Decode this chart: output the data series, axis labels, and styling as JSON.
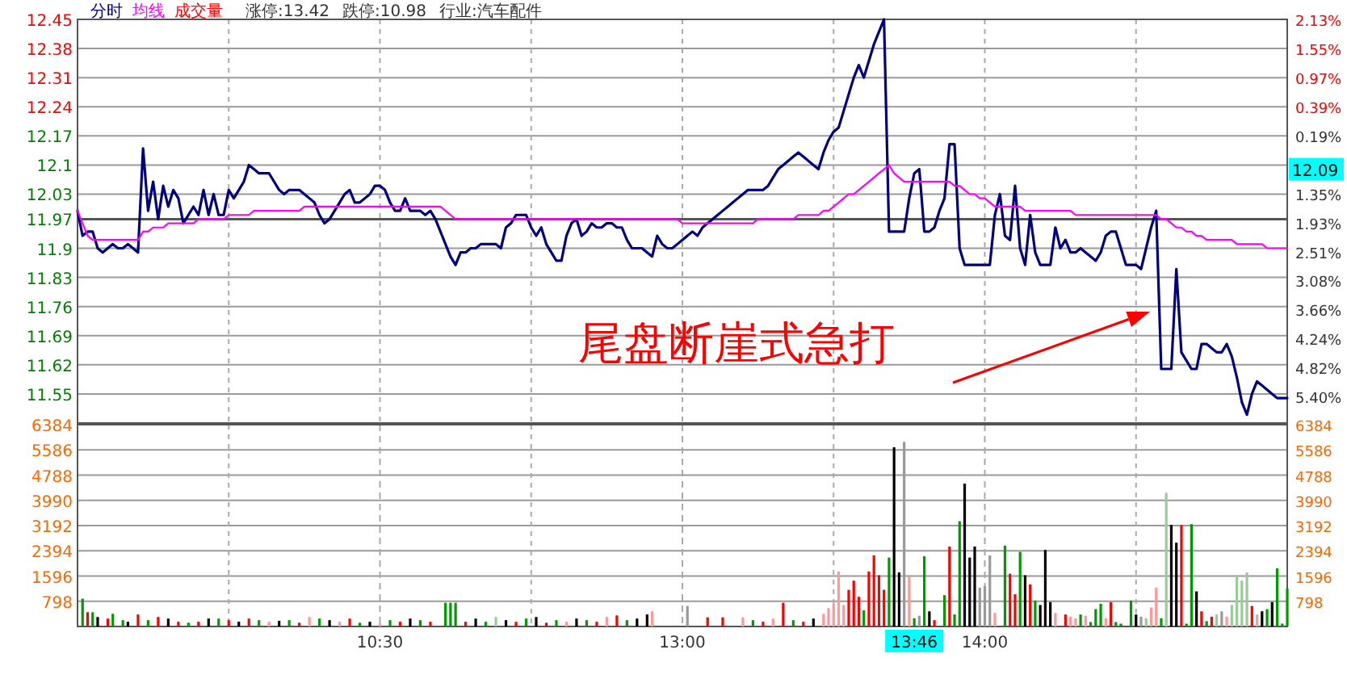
{
  "chart_data": [
    {
      "type": "line",
      "ylim": [
        11.48,
        12.45
      ],
      "y2lim": [
        -5.93,
        2.13
      ],
      "grid": true,
      "legend": "top left",
      "tick_labels": "y",
      "categories": [
        null,
        null,
        null,
        null,
        null,
        null,
        null,
        null,
        null,
        null,
        null,
        null,
        null,
        null,
        null,
        null,
        null,
        null,
        null,
        null,
        null,
        null,
        null,
        null,
        null,
        null,
        null,
        null,
        null,
        null,
        null,
        null,
        null,
        null,
        null,
        null,
        null,
        null,
        null,
        null,
        null,
        null,
        null,
        null,
        null,
        null,
        null,
        null,
        null,
        null,
        null,
        null,
        null,
        null,
        null,
        null,
        null,
        null,
        null,
        null,
        null,
        null,
        null,
        null,
        null,
        null,
        null,
        null,
        null,
        null,
        null,
        null,
        null,
        null,
        null,
        null,
        null,
        null,
        null,
        null,
        null,
        null,
        null,
        null,
        null,
        null,
        null,
        null,
        null,
        null,
        null,
        null,
        null,
        null,
        null,
        null,
        null,
        null,
        null,
        null,
        null,
        null,
        null,
        null,
        null,
        null,
        null,
        null,
        null,
        null,
        null,
        null,
        null,
        null,
        null,
        null,
        null,
        null,
        null,
        null,
        null,
        null,
        null,
        null,
        null,
        null,
        null,
        null,
        null,
        null,
        null,
        null,
        null,
        null,
        null,
        null,
        null,
        null,
        null,
        null,
        null,
        null,
        null,
        null,
        null,
        null,
        null,
        null,
        null,
        null,
        null,
        null,
        null,
        null,
        null,
        null,
        null,
        null,
        null,
        null,
        null,
        null,
        null,
        null,
        null,
        null,
        null,
        null,
        null,
        null,
        null,
        null,
        null,
        null,
        null,
        null,
        null,
        null,
        null,
        null,
        null,
        null,
        null,
        null,
        null,
        null,
        null,
        null,
        null,
        null,
        null,
        null,
        null,
        null,
        null,
        null,
        null,
        null,
        null,
        null,
        null,
        null,
        null,
        null,
        null,
        null,
        null,
        null,
        null,
        null,
        null,
        null,
        null,
        null,
        null,
        null,
        null,
        null,
        null,
        null,
        null,
        null,
        null,
        null,
        null,
        null,
        null,
        null,
        null,
        null,
        null,
        null,
        null,
        null,
        null,
        null,
        null,
        null,
        null,
        null,
        null
      ],
      "yticks": [
        12.45,
        12.38,
        12.31,
        12.24,
        12.17,
        12.1,
        12.03,
        11.97,
        11.9,
        11.83,
        11.76,
        11.69,
        11.62,
        11.55
      ],
      "y2ticks": [
        {
          "value": 2.13,
          "label": "2.13%"
        },
        {
          "value": 1.55,
          "label": "1.55%"
        },
        {
          "value": 0.97,
          "label": "0.97%"
        },
        {
          "value": 0.39,
          "label": "0.39%"
        },
        {
          "value": -0.19,
          "label": "0.19%"
        },
        {
          "value": -1.35,
          "label": "1.35%"
        },
        {
          "value": -1.93,
          "label": "1.93%"
        },
        {
          "value": -2.51,
          "label": "2.51%"
        },
        {
          "value": -3.08,
          "label": "3.08%"
        },
        {
          "value": -3.66,
          "label": "3.66%"
        },
        {
          "value": -4.24,
          "label": "4.24%"
        },
        {
          "value": -4.82,
          "label": "4.82%"
        },
        {
          "value": -5.4,
          "label": "5.40%"
        }
      ],
      "ref_lines": [
        {
          "axis": "y",
          "value": 11.97,
          "color": "#555555"
        }
      ],
      "annotations": [
        "涨停:13.42",
        "跌停:10.98",
        "行业:汽车配件",
        "尾盘断崖式急打",
        "12.09"
      ],
      "series": [
        {
          "name": "分时",
          "type": "line",
          "color": "#000080",
          "values": [
            11.99,
            11.93,
            11.94,
            11.94,
            11.9,
            11.89,
            11.9,
            11.91,
            11.9,
            11.9,
            11.91,
            11.9,
            11.89,
            12.14,
            11.99,
            12.06,
            11.97,
            12.05,
            12.0,
            12.04,
            12.02,
            11.96,
            11.98,
            12.0,
            11.98,
            12.04,
            11.98,
            12.03,
            11.98,
            11.98,
            12.04,
            12.02,
            12.04,
            12.06,
            12.1,
            12.09,
            12.08,
            12.08,
            12.08,
            12.06,
            12.04,
            12.03,
            12.04,
            12.04,
            12.04,
            12.03,
            12.02,
            12.01,
            11.98,
            11.96,
            11.97,
            11.99,
            12.01,
            12.03,
            12.04,
            12.01,
            12.01,
            12.02,
            12.03,
            12.05,
            12.05,
            12.04,
            12.01,
            11.99,
            11.99,
            12.02,
            11.99,
            11.99,
            11.99,
            11.98,
            11.99,
            11.97,
            11.94,
            11.91,
            11.88,
            11.86,
            11.89,
            11.89,
            11.9,
            11.9,
            11.91,
            11.91,
            11.91,
            11.91,
            11.9,
            11.95,
            11.96,
            11.98,
            11.98,
            11.98,
            11.95,
            11.93,
            11.95,
            11.91,
            11.89,
            11.87,
            11.87,
            11.93,
            11.96,
            11.97,
            11.93,
            11.94,
            11.96,
            11.95,
            11.95,
            11.96,
            11.96,
            11.95,
            11.95,
            11.92,
            11.9,
            11.9,
            11.9,
            11.89,
            11.88,
            11.93,
            11.91,
            11.9,
            11.9,
            11.91,
            11.92,
            11.93,
            11.94,
            11.93,
            11.95,
            11.96,
            11.97,
            11.98,
            11.99,
            12.0,
            12.01,
            12.02,
            12.03,
            12.04,
            12.04,
            12.04,
            12.04,
            12.05,
            12.07,
            12.09,
            12.1,
            12.11,
            12.12,
            12.13,
            12.12,
            12.11,
            12.1,
            12.09,
            12.13,
            12.16,
            12.18,
            12.19,
            12.23,
            12.27,
            12.31,
            12.34,
            12.31,
            12.35,
            12.39,
            12.42,
            12.45,
            11.94,
            11.94,
            11.94,
            11.94,
            12.02,
            12.08,
            12.09,
            11.94,
            11.94,
            11.95,
            11.99,
            12.02,
            12.15,
            12.15,
            11.9,
            11.86,
            11.86,
            11.86,
            11.86,
            11.86,
            11.86,
            11.98,
            12.03,
            11.93,
            11.92,
            12.05,
            11.9,
            11.86,
            11.98,
            11.89,
            11.86,
            11.86,
            11.86,
            11.95,
            11.9,
            11.92,
            11.89,
            11.89,
            11.9,
            11.89,
            11.88,
            11.87,
            11.89,
            11.93,
            11.94,
            11.94,
            11.9,
            11.86,
            11.86,
            11.86,
            11.85,
            11.9,
            11.95,
            11.99,
            11.61,
            11.61,
            11.61,
            11.85,
            11.65,
            11.63,
            11.61,
            11.61,
            11.67,
            11.67,
            11.66,
            11.65,
            11.65,
            11.67,
            11.64,
            11.59,
            11.53,
            11.5,
            11.55,
            11.58,
            11.57,
            11.56,
            11.55,
            11.54,
            11.54,
            11.54
          ]
        },
        {
          "name": "均线",
          "type": "line",
          "color": "#ff00ff",
          "values": [
            11.99,
            11.96,
            11.93,
            11.92,
            11.92,
            11.92,
            11.92,
            11.92,
            11.92,
            11.92,
            11.92,
            11.92,
            11.92,
            11.94,
            11.94,
            11.95,
            11.95,
            11.95,
            11.96,
            11.96,
            11.96,
            11.96,
            11.96,
            11.96,
            11.97,
            11.97,
            11.97,
            11.97,
            11.97,
            11.97,
            11.98,
            11.98,
            11.98,
            11.98,
            11.98,
            11.99,
            11.99,
            11.99,
            11.99,
            11.99,
            11.99,
            11.99,
            11.99,
            11.99,
            11.99,
            12.0,
            12.0,
            12.0,
            12.0,
            12.0,
            12.0,
            12.0,
            12.0,
            12.0,
            12.0,
            12.0,
            12.0,
            12.0,
            12.0,
            12.0,
            12.0,
            12.0,
            12.0,
            12.0,
            12.0,
            12.0,
            12.0,
            12.0,
            12.0,
            12.0,
            12.0,
            12.0,
            12.0,
            11.99,
            11.98,
            11.97,
            11.97,
            11.97,
            11.97,
            11.97,
            11.97,
            11.97,
            11.97,
            11.97,
            11.97,
            11.97,
            11.97,
            11.97,
            11.97,
            11.97,
            11.97,
            11.97,
            11.97,
            11.97,
            11.97,
            11.97,
            11.97,
            11.97,
            11.97,
            11.97,
            11.97,
            11.97,
            11.97,
            11.97,
            11.97,
            11.97,
            11.97,
            11.97,
            11.97,
            11.97,
            11.97,
            11.97,
            11.97,
            11.97,
            11.97,
            11.97,
            11.97,
            11.97,
            11.97,
            11.97,
            11.96,
            11.96,
            11.96,
            11.96,
            11.96,
            11.96,
            11.96,
            11.96,
            11.96,
            11.96,
            11.96,
            11.96,
            11.96,
            11.96,
            11.96,
            11.97,
            11.97,
            11.97,
            11.97,
            11.97,
            11.97,
            11.97,
            11.97,
            11.98,
            11.98,
            11.98,
            11.98,
            11.98,
            11.99,
            11.99,
            12.0,
            12.01,
            12.02,
            12.03,
            12.03,
            12.04,
            12.05,
            12.06,
            12.07,
            12.08,
            12.09,
            12.1,
            12.08,
            12.07,
            12.06,
            12.06,
            12.06,
            12.06,
            12.06,
            12.06,
            12.06,
            12.06,
            12.06,
            12.06,
            12.05,
            12.05,
            12.04,
            12.03,
            12.03,
            12.02,
            12.02,
            12.01,
            12.0,
            12.0,
            12.0,
            12.0,
            12.0,
            12.0,
            11.99,
            11.99,
            11.99,
            11.99,
            11.99,
            11.99,
            11.99,
            11.99,
            11.99,
            11.99,
            11.98,
            11.98,
            11.98,
            11.98,
            11.98,
            11.98,
            11.98,
            11.98,
            11.98,
            11.98,
            11.98,
            11.98,
            11.98,
            11.98,
            11.98,
            11.98,
            11.98,
            11.97,
            11.97,
            11.96,
            11.95,
            11.95,
            11.94,
            11.94,
            11.93,
            11.93,
            11.92,
            11.92,
            11.92,
            11.92,
            11.92,
            11.92,
            11.91,
            11.91,
            11.91,
            11.91,
            11.91,
            11.91,
            11.9,
            11.9,
            11.9,
            11.9,
            11.9
          ]
        }
      ]
    },
    {
      "type": "bar",
      "ylim": [
        0,
        6384
      ],
      "y2lim": [
        0,
        6384
      ],
      "grid": true,
      "legend": "top left",
      "categories": [
        null,
        null,
        null,
        null,
        null,
        null,
        null,
        null,
        null,
        null,
        null,
        null,
        null,
        null,
        null,
        null,
        null,
        null,
        null,
        null,
        null,
        null,
        null,
        null,
        null,
        null,
        null,
        null,
        null,
        null,
        null,
        null,
        null,
        null,
        null,
        null,
        null,
        null,
        null,
        null,
        null,
        null,
        null,
        null,
        null,
        null,
        null,
        null,
        null,
        null,
        null,
        null,
        null,
        null,
        null,
        null,
        null,
        null,
        null,
        null,
        "10:30",
        null,
        null,
        null,
        null,
        null,
        null,
        null,
        null,
        null,
        null,
        null,
        null,
        null,
        null,
        null,
        null,
        null,
        null,
        null,
        null,
        null,
        null,
        null,
        null,
        null,
        null,
        null,
        null,
        null,
        null,
        null,
        null,
        null,
        null,
        null,
        null,
        null,
        null,
        null,
        null,
        null,
        null,
        null,
        null,
        null,
        null,
        null,
        null,
        null,
        null,
        null,
        null,
        null,
        null,
        null,
        null,
        null,
        null,
        null,
        "13:00",
        null,
        null,
        null,
        null,
        null,
        null,
        null,
        null,
        null,
        null,
        null,
        null,
        null,
        null,
        null,
        null,
        null,
        null,
        null,
        null,
        null,
        null,
        null,
        null,
        null,
        null,
        null,
        null,
        null,
        null,
        null,
        null,
        null,
        null,
        null,
        null,
        null,
        null,
        null,
        null,
        null,
        null,
        null,
        null,
        null,
        "13:46",
        null,
        null,
        null,
        null,
        null,
        null,
        null,
        null,
        null,
        null,
        null,
        null,
        null,
        "14:00",
        null,
        null,
        null,
        null,
        null,
        null,
        null,
        null,
        null,
        null,
        null,
        null,
        null,
        null,
        null,
        null,
        null,
        null,
        null,
        null,
        null,
        null,
        null,
        null,
        null,
        null,
        null,
        null,
        null,
        null,
        null,
        null,
        null,
        null,
        null,
        null,
        null,
        null,
        null,
        null,
        null,
        null,
        null,
        null,
        null,
        null,
        null,
        null,
        null,
        null,
        null,
        null,
        null,
        null,
        null,
        null,
        null,
        null,
        null,
        null
      ],
      "yticks": [
        798,
        1596,
        2394,
        3192,
        3990,
        4788,
        5586,
        6384
      ],
      "y2ticks": [
        798,
        1596,
        2394,
        3192,
        3990,
        4788,
        5586,
        6384
      ],
      "series": [
        {
          "name": "成交量",
          "type": "bar",
          "color": "#ff0000",
          "values": [
            null,
            880,
            450,
            450,
            300,
            null,
            250,
            400,
            null,
            200,
            150,
            null,
            380,
            null,
            200,
            null,
            300,
            null,
            250,
            null,
            150,
            null,
            120,
            null,
            150,
            null,
            250,
            null,
            250,
            null,
            200,
            null,
            150,
            null,
            250,
            null,
            200,
            null,
            150,
            null,
            180,
            null,
            200,
            null,
            120,
            null,
            300,
            null,
            250,
            null,
            200,
            null,
            150,
            null,
            250,
            null,
            120,
            null,
            150,
            null,
            100,
            null,
            200,
            null,
            150,
            null,
            250,
            null,
            200,
            null,
            150,
            null,
            null,
            750,
            750,
            750,
            null,
            150,
            null,
            250,
            null,
            150,
            null,
            300,
            null,
            200,
            null,
            150,
            null,
            250,
            null,
            300,
            null,
            120,
            null,
            200,
            null,
            150,
            null,
            250,
            null,
            200,
            null,
            150,
            null,
            300,
            null,
            350,
            null,
            200,
            null,
            250,
            null,
            380,
            480,
            null,
            null,
            null,
            null,
            null,
            null,
            650,
            null,
            null,
            null,
            290,
            null,
            null,
            290,
            null,
            null,
            null,
            290,
            null,
            200,
            null,
            150,
            null,
            250,
            null,
            750,
            null,
            200,
            null,
            150,
            null,
            250,
            null,
            400,
            580,
            720,
            1740,
            680,
            1160,
            1450,
            940,
            510,
            1740,
            2250,
            1620,
            1160,
            2180,
            5670,
            1710,
            5840,
            1570,
            260,
            340,
            2220,
            480,
            200,
            null,
            990,
            2530,
            380,
            3330,
            4520,
            2180,
            2530,
            1230,
            1280,
            2250,
            430,
            null,
            2560,
            1670,
            1020,
            2360,
            1620,
            1330,
            820,
            680,
            2420,
            770,
            430,
            null,
            380,
            310,
            260,
            380,
            340,
            140,
            550,
            720,
            260,
            770,
            140,
            90,
            null,
            820,
            380,
            310,
            260,
            600,
            1230,
            260,
            4230,
            3210,
            2650,
            3210,
            90,
            3240,
            1110,
            480,
            170,
            310,
            380,
            480,
            310,
            680,
            1620,
            1450,
            1710,
            650,
            380,
            480,
            550,
            770,
            1840,
            90,
            1200
          ],
          "colors": [
            null,
            "#009900",
            "#ff0000",
            "#009900",
            "#000000",
            null,
            "#ff0000",
            "#009900",
            null,
            "#009900",
            "#000000",
            null,
            "#ff0000",
            null,
            "#009900",
            null,
            "#ff0000",
            null,
            "#000000",
            null,
            "#ff0000",
            null,
            "#009900",
            null,
            "#ff0000",
            null,
            "#000000",
            null,
            "#009900",
            null,
            "#ff0000",
            null,
            "#000000",
            null,
            "#ff0000",
            null,
            "#009900",
            null,
            "#ff9999",
            null,
            "#000000",
            null,
            "#009900",
            null,
            "#ff0000",
            null,
            "#ff9999",
            null,
            "#009900",
            null,
            "#000000",
            null,
            "#ff9999",
            null,
            "#ff0000",
            null,
            "#009900",
            null,
            "#000000",
            null,
            "#ff9999",
            null,
            "#009900",
            null,
            "#ff0000",
            null,
            "#000000",
            null,
            "#009900",
            null,
            "#ff0000",
            null,
            null,
            "#009900",
            "#009900",
            "#009900",
            null,
            "#ff0000",
            null,
            "#000000",
            null,
            "#009900",
            null,
            "#99cc99",
            null,
            "#000000",
            null,
            "#ff0000",
            null,
            "#009900",
            null,
            "#000000",
            null,
            "#ff0000",
            null,
            "#009900",
            null,
            "#ff9999",
            null,
            "#000000",
            null,
            "#009900",
            null,
            "#ff0000",
            null,
            "#ff9999",
            null,
            "#ff0000",
            null,
            "#009900",
            null,
            "#000000",
            null,
            "#000000",
            "#ff9999",
            null,
            null,
            null,
            null,
            null,
            null,
            "#999999",
            null,
            null,
            null,
            "#ff0000",
            null,
            null,
            "#ff0000",
            null,
            null,
            null,
            "#ff9999",
            null,
            "#009900",
            null,
            "#ff0000",
            null,
            "#ff9999",
            null,
            "#ff0000",
            null,
            "#009900",
            null,
            "#ff0000",
            null,
            "#000000",
            null,
            "#ff9999",
            "#ff9999",
            "#ff9999",
            "#ff9999",
            "#ff9999",
            "#ff0000",
            "#ff0000",
            "#ff0000",
            "#009900",
            "#ff0000",
            "#ff0000",
            "#ff0000",
            "#ff0000",
            "#009900",
            "#000000",
            "#000000",
            "#999999",
            "#ff9999",
            "#009900",
            "#999999",
            "#009900",
            "#000000",
            "#ff0000",
            null,
            "#009900",
            "#ff0000",
            "#009900",
            "#009900",
            "#000000",
            "#000000",
            "#000000",
            "#999999",
            "#999999",
            "#999999",
            "#ff9999",
            null,
            "#009900",
            "#ff0000",
            "#ff0000",
            "#009900",
            "#000000",
            "#ff0000",
            "#009900",
            "#000000",
            "#000000",
            "#000000",
            "#ff9999",
            null,
            "#ff0000",
            "#ff9999",
            "#ff9999",
            "#009900",
            "#ff9999",
            "#009900",
            "#009900",
            "#009900",
            "#ff9999",
            "#ff0000",
            "#009900",
            "#009900",
            null,
            "#009900",
            "#000000",
            "#999999",
            "#99cc99",
            "#ff9999",
            "#ff9999",
            "#009900",
            "#99cc99",
            "#000000",
            "#000000",
            "#ff0000",
            "#009900",
            "#009900",
            "#000000",
            "#ff0000",
            "#009900",
            "#ff0000",
            "#99cc99",
            "#999999",
            "#ff9999",
            "#99cc99",
            "#99cc99",
            "#99cc99",
            "#99cc99",
            "#ff0000",
            "#ff9999",
            "#000000",
            "#009900",
            "#000000",
            "#009900",
            "#009900",
            "#009900"
          ]
        }
      ]
    }
  ]
}
